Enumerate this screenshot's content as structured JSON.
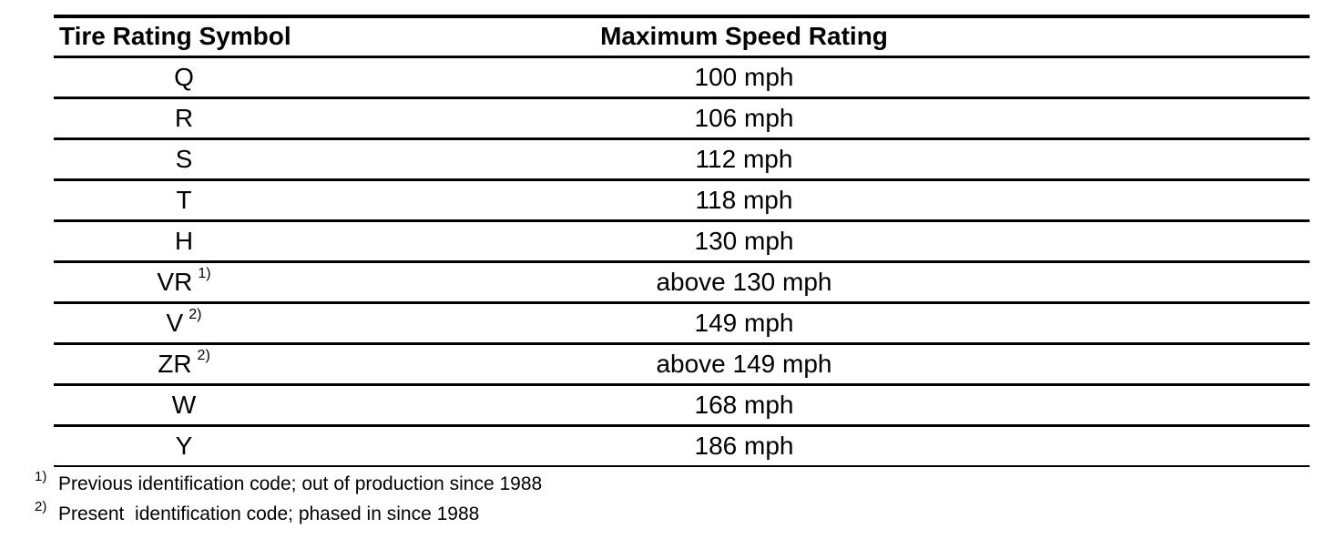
{
  "page": {
    "background": "#ffffff",
    "text_color": "#000000",
    "rule_color": "#000000"
  },
  "table": {
    "header": {
      "symbol_col": "Tire Rating Symbol",
      "speed_col": "Maximum Speed Rating"
    },
    "rows": [
      {
        "symbol": "Q",
        "sup": "",
        "speed": "100 mph"
      },
      {
        "symbol": "R",
        "sup": "",
        "speed": "106 mph"
      },
      {
        "symbol": "S",
        "sup": "",
        "speed": "112 mph"
      },
      {
        "symbol": "T",
        "sup": "",
        "speed": "118 mph"
      },
      {
        "symbol": "H",
        "sup": "",
        "speed": "130 mph"
      },
      {
        "symbol": "VR",
        "sup": "1)",
        "speed": "above 130 mph"
      },
      {
        "symbol": "V",
        "sup": "2)",
        "speed": "149 mph"
      },
      {
        "symbol": "ZR",
        "sup": "2)",
        "speed": "above 149 mph"
      },
      {
        "symbol": "W",
        "sup": "",
        "speed": "168 mph"
      },
      {
        "symbol": "Y",
        "sup": "",
        "speed": "186 mph"
      }
    ]
  },
  "footnotes": [
    {
      "marker": "1)",
      "text": "Previous identification code; out of production since 1988"
    },
    {
      "marker": "2)",
      "text": "Present  identification code; phased in since 1988"
    }
  ]
}
